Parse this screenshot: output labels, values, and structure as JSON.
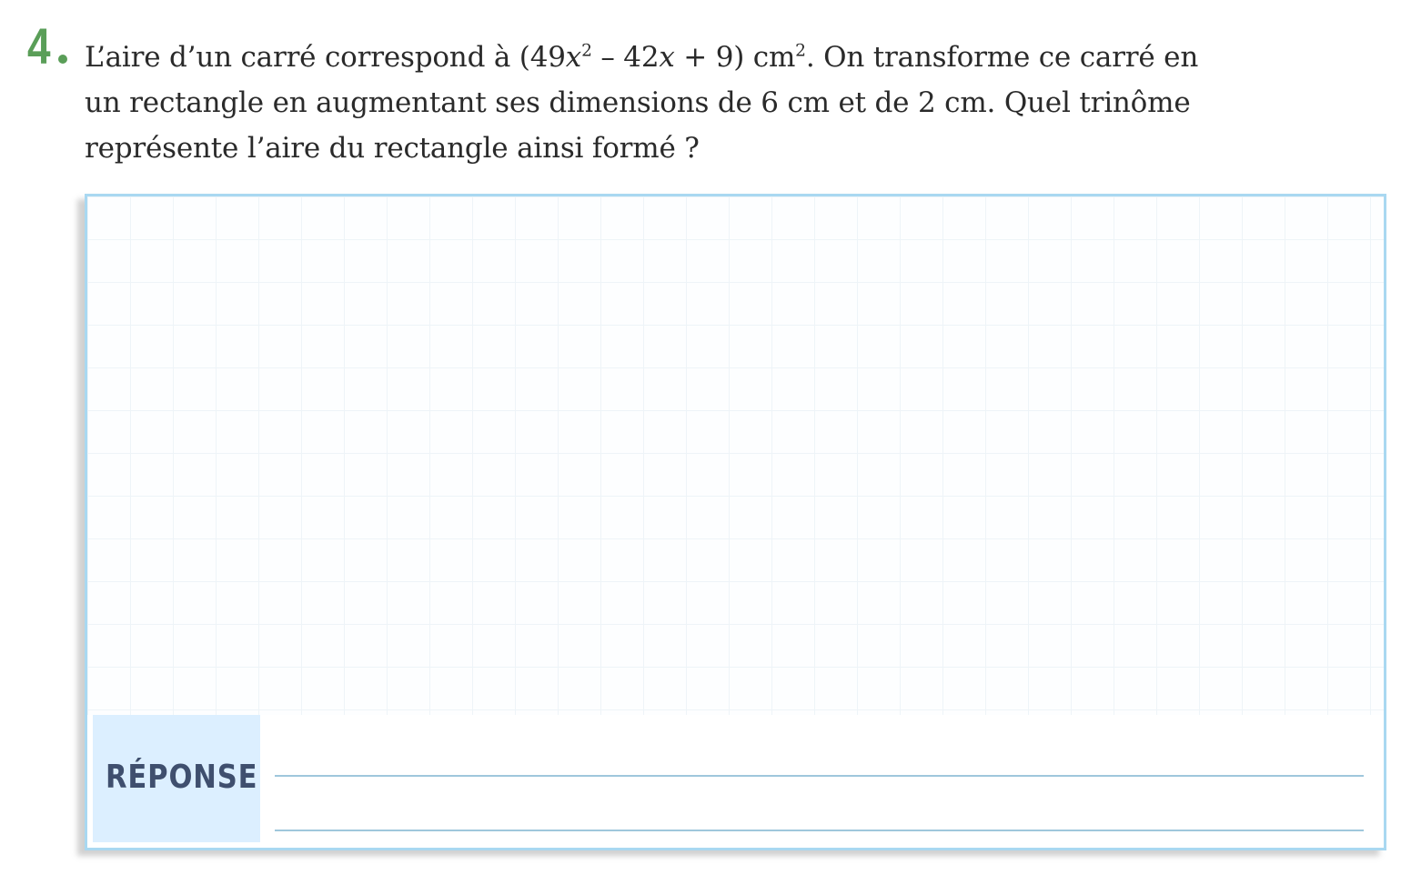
{
  "exercise": {
    "number": "4",
    "lines": [
      [
        "L’aire d’un carré correspond à (49",
        "x",
        "2",
        " – 42",
        "x",
        " + 9) cm",
        "2",
        ". On transforme ce carré en"
      ],
      "un rectangle en augmentant ses dimensions de 6 cm et de 2 cm. Quel trinôme",
      "représente l’aire du rectangle ainsi formé ?"
    ]
  },
  "answer_box": {
    "label": "RÉPONSE",
    "value": ""
  },
  "colors": {
    "number": "#5a9e58",
    "box_border": "#a9d8f1",
    "label_bg": "#dcefff",
    "label_text": "#3f4f6e"
  }
}
